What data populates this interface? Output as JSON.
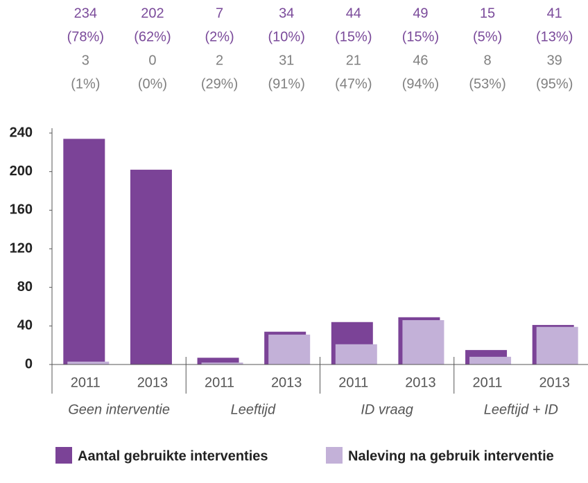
{
  "chart_data": {
    "type": "bar",
    "categories": [
      "2011",
      "2013",
      "2011",
      "2013",
      "2011",
      "2013",
      "2011",
      "2013"
    ],
    "groups": [
      "Geen interventie",
      "Leeftijd",
      "ID vraag",
      "Leeftijd + ID"
    ],
    "series": [
      {
        "name": "Aantal gebruikte interventies",
        "color": "#7b4397",
        "values": [
          234,
          202,
          7,
          34,
          44,
          49,
          15,
          41
        ],
        "percentages": [
          78,
          62,
          2,
          10,
          15,
          15,
          5,
          13
        ],
        "percentage_labels": [
          "(78%)",
          "(62%)",
          "(2%)",
          "(10%)",
          "(15%)",
          "(15%)",
          "(5%)",
          "(13%)"
        ]
      },
      {
        "name": "Naleving na gebruik interventie",
        "color": "#c3b1d8",
        "values": [
          3,
          0,
          2,
          31,
          21,
          46,
          8,
          39
        ],
        "percentages": [
          1,
          0,
          29,
          91,
          47,
          94,
          53,
          95
        ],
        "percentage_labels": [
          "(1%)",
          "(0%)",
          "(29%)",
          "(91%)",
          "(47%)",
          "(94%)",
          "(53%)",
          "(95%)"
        ]
      }
    ],
    "ylim": [
      0,
      240
    ],
    "yticks": [
      0,
      40,
      80,
      120,
      160,
      200,
      240
    ]
  }
}
